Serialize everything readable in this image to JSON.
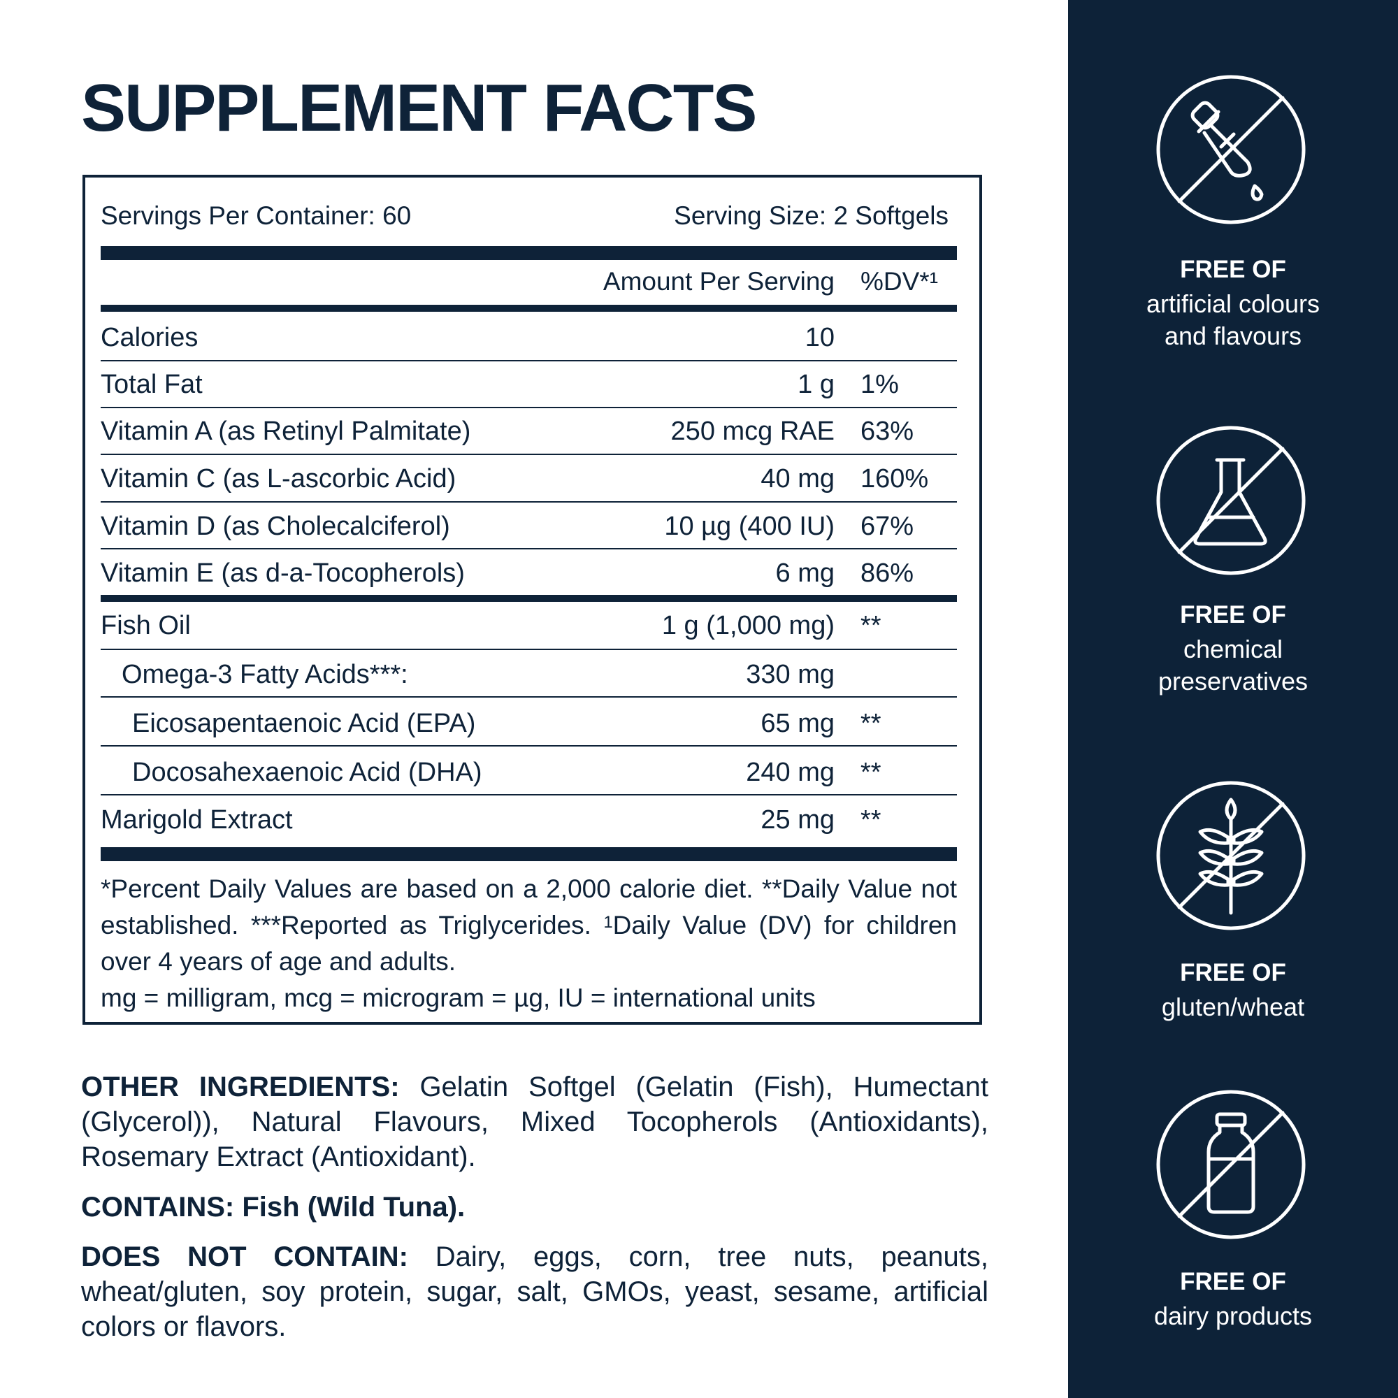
{
  "title": "SUPPLEMENT FACTS",
  "facts": {
    "servings_per_container": "Servings Per Container: 60",
    "serving_size": "Serving Size: 2 Softgels",
    "amount_header": "Amount Per Serving",
    "dv_header": "%DV*¹",
    "rows": [
      {
        "name": "Calories",
        "amount": "10",
        "dv": ""
      },
      {
        "name": "Total Fat",
        "amount": "1 g",
        "dv": "1%"
      },
      {
        "name": "Vitamin A (as Retinyl Palmitate)",
        "amount": "250 mcg RAE",
        "dv": "63%"
      },
      {
        "name": "Vitamin C (as L-ascorbic Acid)",
        "amount": "40 mg",
        "dv": "160%"
      },
      {
        "name": "Vitamin D (as Cholecalciferol)",
        "amount": "10 µg (400 IU)",
        "dv": "67%"
      },
      {
        "name": "Vitamin E (as d-a-Tocopherols)",
        "amount": "6 mg",
        "dv": "86%"
      },
      {
        "name": "Fish Oil",
        "amount": "1 g (1,000 mg)",
        "dv": "**"
      },
      {
        "name": "Omega-3 Fatty Acids***:",
        "amount": "330 mg",
        "dv": ""
      },
      {
        "name": "Eicosapentaenoic Acid (EPA)",
        "amount": "65 mg",
        "dv": "**"
      },
      {
        "name": "Docosahexaenoic Acid (DHA)",
        "amount": "240 mg",
        "dv": "**"
      },
      {
        "name": "Marigold Extract",
        "amount": "25 mg",
        "dv": "**"
      }
    ],
    "footnote_a": "*Percent Daily Values are based on a 2,000 calorie diet. **Daily Value not established. ***Reported as Triglycerides.",
    "footnote_sup": "1",
    "footnote_b": "Daily Value (DV) for children over 4 years of age and adults.",
    "units_note": "mg = milligram, mcg = microgram = µg, IU = international units"
  },
  "other_ingredients": {
    "label": "OTHER INGREDIENTS:",
    "text": "Gelatin Softgel (Gelatin (Fish), Humectant (Glycerol)), Natural Flavours, Mixed Tocopherols (Antioxidants), Rosemary Extract (Antioxidant)."
  },
  "contains": {
    "text": "CONTAINS: Fish (Wild Tuna)."
  },
  "does_not_contain": {
    "label": "DOES NOT CONTAIN:",
    "text": "Dairy, eggs, corn, tree nuts, peanuts, wheat/gluten, soy protein, sugar, salt, GMOs, yeast, sesame, artificial colors or flavors."
  },
  "badges": [
    {
      "free_label": "FREE OF",
      "line1": "artificial colours",
      "line2": "and flavours",
      "icon": "dropper-icon"
    },
    {
      "free_label": "FREE OF",
      "line1": "chemical",
      "line2": "preservatives",
      "icon": "flask-icon"
    },
    {
      "free_label": "FREE OF",
      "line1": "gluten/wheat",
      "line2": "",
      "icon": "wheat-icon"
    },
    {
      "free_label": "FREE OF",
      "line1": "dairy products",
      "line2": "",
      "icon": "milk-bottle-icon"
    }
  ],
  "colors": {
    "navy": "#0e2238",
    "sidebar": "#0d2238",
    "white": "#ffffff"
  }
}
